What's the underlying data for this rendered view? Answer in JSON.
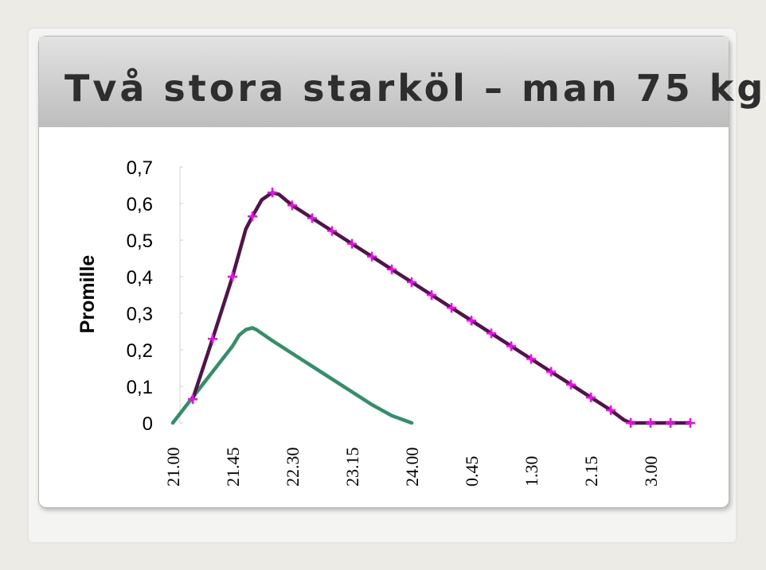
{
  "slide": {
    "title": "Två stora starköl – man 75 kg"
  },
  "chart_data": {
    "type": "line",
    "title": "",
    "ylabel": "Promille",
    "xlabel": "",
    "ylim": [
      0,
      0.7
    ],
    "ytick_values": [
      0,
      0.1,
      0.2,
      0.3,
      0.4,
      0.5,
      0.6,
      0.7
    ],
    "ytick_labels": [
      "0",
      "0,1",
      "0,2",
      "0,3",
      "0,4",
      "0,5",
      "0,6",
      "0,7"
    ],
    "xlim_minutes": [
      0,
      360
    ],
    "xtick_labels": [
      "21.00",
      "21.45",
      "22.30",
      "23.15",
      "24.00",
      "0.45",
      "1.30",
      "2.15",
      "3.00"
    ],
    "xtick_minutes": [
      0,
      45,
      90,
      135,
      180,
      225,
      270,
      315,
      360
    ],
    "grid": false,
    "series": [
      {
        "color": "#52124a",
        "marker": "plus",
        "marker_color": "#ff00ff",
        "x_minutes": [
          15,
          30,
          45,
          60,
          75,
          90,
          105,
          120,
          135,
          150,
          165,
          180,
          195,
          210,
          225,
          240,
          255,
          270,
          285,
          300,
          315,
          330,
          345,
          360,
          375,
          390
        ],
        "values": [
          0.065,
          0.23,
          0.4,
          0.565,
          0.63,
          0.595,
          0.56,
          0.525,
          0.49,
          0.455,
          0.42,
          0.385,
          0.35,
          0.315,
          0.28,
          0.245,
          0.21,
          0.175,
          0.14,
          0.105,
          0.07,
          0.035,
          0.0,
          0.0,
          0.0,
          0.0
        ],
        "line_x_minutes": [
          15,
          30,
          45,
          55,
          60,
          67,
          75,
          80,
          90,
          105,
          120,
          135,
          150,
          165,
          180,
          195,
          210,
          225,
          240,
          255,
          270,
          285,
          300,
          315,
          330,
          340,
          345,
          360,
          375,
          390
        ],
        "line_values": [
          0.065,
          0.23,
          0.4,
          0.53,
          0.565,
          0.61,
          0.63,
          0.625,
          0.595,
          0.56,
          0.525,
          0.49,
          0.455,
          0.42,
          0.385,
          0.35,
          0.315,
          0.28,
          0.245,
          0.21,
          0.175,
          0.14,
          0.105,
          0.07,
          0.035,
          0.008,
          0.0,
          0.0,
          0.0,
          0.0
        ]
      },
      {
        "color": "#329068",
        "marker": "none",
        "x_minutes": [
          0,
          15,
          30,
          45,
          50,
          55,
          60,
          63,
          67,
          75,
          90,
          105,
          120,
          135,
          150,
          165,
          180
        ],
        "values": [
          0.0,
          0.07,
          0.14,
          0.21,
          0.24,
          0.255,
          0.26,
          0.255,
          0.245,
          0.225,
          0.19,
          0.155,
          0.12,
          0.085,
          0.05,
          0.02,
          0.0
        ]
      }
    ]
  }
}
